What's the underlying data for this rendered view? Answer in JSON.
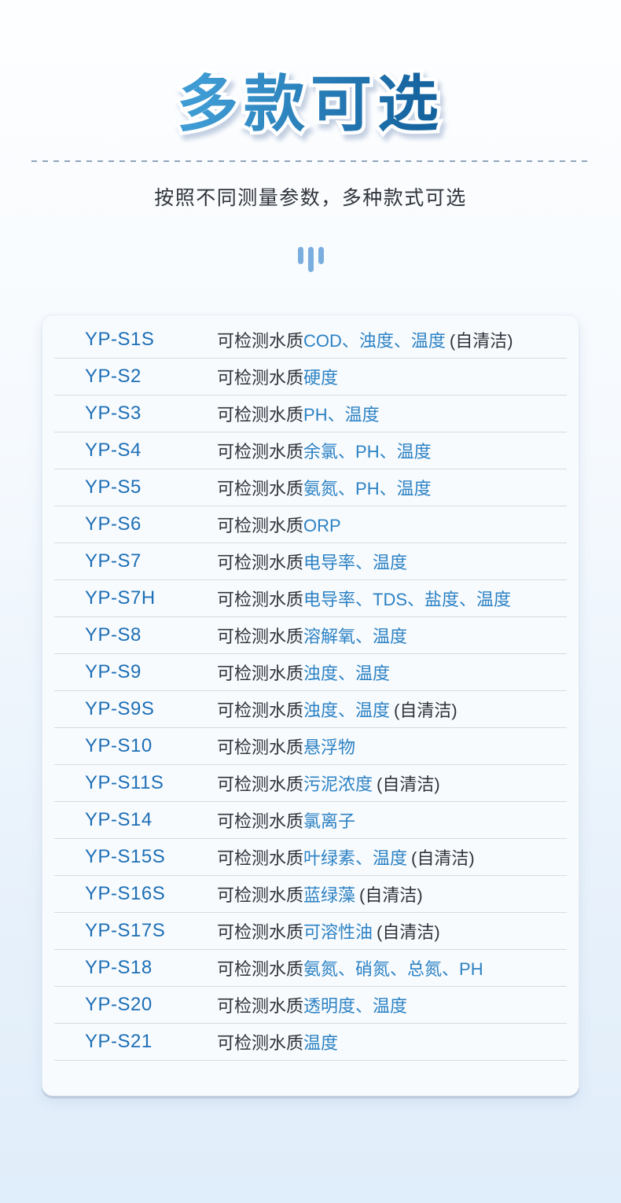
{
  "header": {
    "title": "多款可选",
    "subtitle": "按照不同测量参数，多种款式可选"
  },
  "colors": {
    "title_gradient_start": "#3f9bd3",
    "title_gradient_end": "#15639f",
    "dash_color": "#91a4b8",
    "text_dark": "#2f343b",
    "bar_icon": "#7aaede",
    "card_bg": "#f8fbfe",
    "divider": "#d6dbe0",
    "model_blue": "#1d6fb6",
    "param_blue": "#2c82c4"
  },
  "table": {
    "desc_prefix": "可检测水质",
    "rows": [
      {
        "model": "YP-S1S",
        "params": "COD、浊度、温度",
        "note": "(自清洁)"
      },
      {
        "model": "YP-S2",
        "params": "硬度",
        "note": ""
      },
      {
        "model": "YP-S3",
        "params": "PH、温度",
        "note": ""
      },
      {
        "model": "YP-S4",
        "params": "余氯、PH、温度",
        "note": ""
      },
      {
        "model": "YP-S5",
        "params": "氨氮、PH、温度",
        "note": ""
      },
      {
        "model": "YP-S6",
        "params": "ORP",
        "note": ""
      },
      {
        "model": "YP-S7",
        "params": "电导率、温度",
        "note": ""
      },
      {
        "model": "YP-S7H",
        "params": "电导率、TDS、盐度、温度",
        "note": ""
      },
      {
        "model": "YP-S8",
        "params": "溶解氧、温度",
        "note": ""
      },
      {
        "model": "YP-S9",
        "params": "浊度、温度",
        "note": ""
      },
      {
        "model": "YP-S9S",
        "params": "浊度、温度",
        "note": "(自清洁)"
      },
      {
        "model": "YP-S10",
        "params": "悬浮物",
        "note": ""
      },
      {
        "model": "YP-S11S",
        "params": "污泥浓度",
        "note": "(自清洁)"
      },
      {
        "model": "YP-S14",
        "params": "氯离子",
        "note": ""
      },
      {
        "model": "YP-S15S",
        "params": "叶绿素、温度",
        "note": "(自清洁)"
      },
      {
        "model": "YP-S16S",
        "params": "蓝绿藻",
        "note": "(自清洁)"
      },
      {
        "model": "YP-S17S",
        "params": "可溶性油",
        "note": "(自清洁)"
      },
      {
        "model": "YP-S18",
        "params": "氨氮、硝氮、总氮、PH",
        "note": ""
      },
      {
        "model": "YP-S20",
        "params": "透明度、温度",
        "note": ""
      },
      {
        "model": "YP-S21",
        "params": "温度",
        "note": ""
      }
    ]
  }
}
